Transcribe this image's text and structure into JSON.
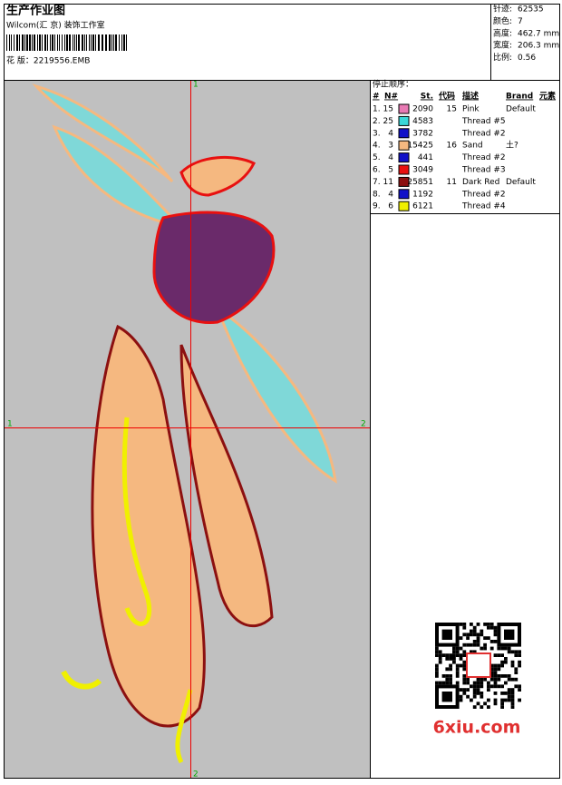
{
  "header": {
    "title": "生产作业图",
    "company": "Wilcom(汇 京) 装饰工作室",
    "design_file": "花 版：2219556.EMB"
  },
  "stats": [
    {
      "label": "针迹:",
      "value": "62535"
    },
    {
      "label": "颜色:",
      "value": "7"
    },
    {
      "label": "高度:",
      "value": "462.7 mm"
    },
    {
      "label": "宽度:",
      "value": "206.3 mm"
    },
    {
      "label": "比例:",
      "value": "0.56"
    }
  ],
  "sequence": {
    "title": "停止顺序：",
    "columns": [
      "#",
      "N#",
      "St.",
      "代码",
      "描述",
      "Brand",
      "元素"
    ],
    "rows": [
      {
        "index": "1.",
        "needle": "15",
        "color": "#e87ab4",
        "stitches": "2090",
        "code": "15",
        "description": "Pink",
        "brand": "Default"
      },
      {
        "index": "2.",
        "needle": "25",
        "color": "#3ad8d8",
        "stitches": "4583",
        "description": "Thread #5"
      },
      {
        "index": "3.",
        "needle": "4",
        "color": "#1010c8",
        "stitches": "3782",
        "description": "Thread #2"
      },
      {
        "index": "4.",
        "needle": "3",
        "color": "#f5b880",
        "stitches": "15425",
        "code": "16",
        "description": "Sand",
        "brand": "土?"
      },
      {
        "index": "5.",
        "needle": "4",
        "color": "#1010c8",
        "stitches": "441",
        "description": "Thread #2"
      },
      {
        "index": "6.",
        "needle": "5",
        "color": "#e81010",
        "stitches": "3049",
        "description": "Thread #3"
      },
      {
        "index": "7.",
        "needle": "11",
        "color": "#8c1010",
        "stitches": "25851",
        "code": "11",
        "description": "Dark Red",
        "brand": "Default"
      },
      {
        "index": "8.",
        "needle": "4",
        "color": "#1010c8",
        "stitches": "1192",
        "description": "Thread #2"
      },
      {
        "index": "9.",
        "needle": "6",
        "color": "#f0f000",
        "stitches": "6121",
        "description": "Thread #4"
      }
    ]
  },
  "crosshair": {
    "top": "1",
    "bottom": "2",
    "left": "1",
    "right": "2"
  },
  "watermark": "6xiu.com"
}
